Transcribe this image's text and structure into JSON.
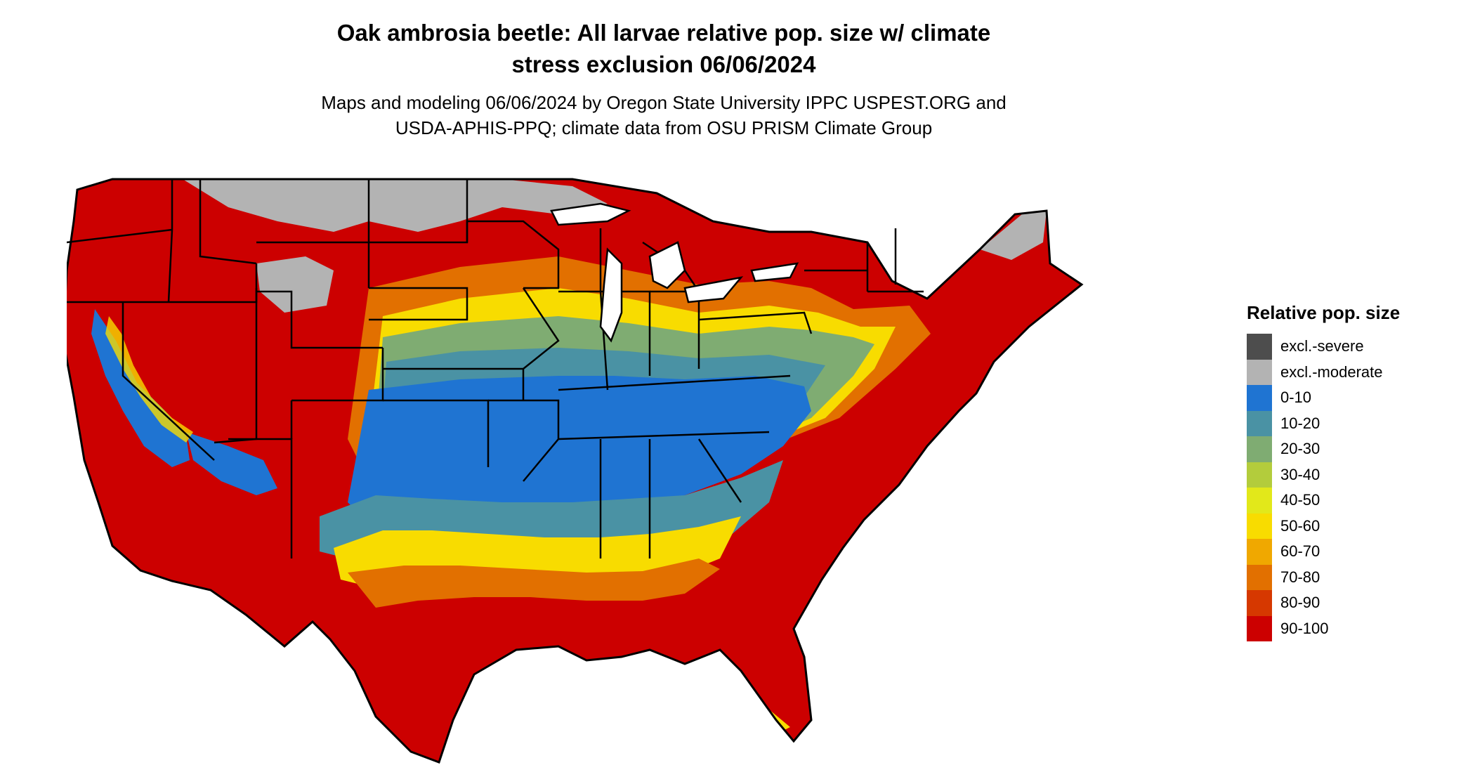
{
  "title_line1": "Oak ambrosia beetle: All larvae relative pop. size w/ climate",
  "title_line2": "stress exclusion 06/06/2024",
  "subtitle_line1": "Maps and modeling 06/06/2024 by Oregon State University IPPC USPEST.ORG and",
  "subtitle_line2": "USDA-APHIS-PPQ; climate data from OSU PRISM Climate Group",
  "legend": {
    "title": "Relative pop. size",
    "items": [
      {
        "label": "excl.-severe",
        "color": "#4d4d4d"
      },
      {
        "label": "excl.-moderate",
        "color": "#b3b3b3"
      },
      {
        "label": "0-10",
        "color": "#1f74d2"
      },
      {
        "label": "10-20",
        "color": "#4a92a4"
      },
      {
        "label": "20-30",
        "color": "#7fac72"
      },
      {
        "label": "30-40",
        "color": "#b3cc3c"
      },
      {
        "label": "40-50",
        "color": "#e2e81a"
      },
      {
        "label": "50-60",
        "color": "#f8dc00"
      },
      {
        "label": "60-70",
        "color": "#f0a800"
      },
      {
        "label": "70-80",
        "color": "#e27000"
      },
      {
        "label": "80-90",
        "color": "#d63800"
      },
      {
        "label": "90-100",
        "color": "#cc0000"
      }
    ]
  }
}
